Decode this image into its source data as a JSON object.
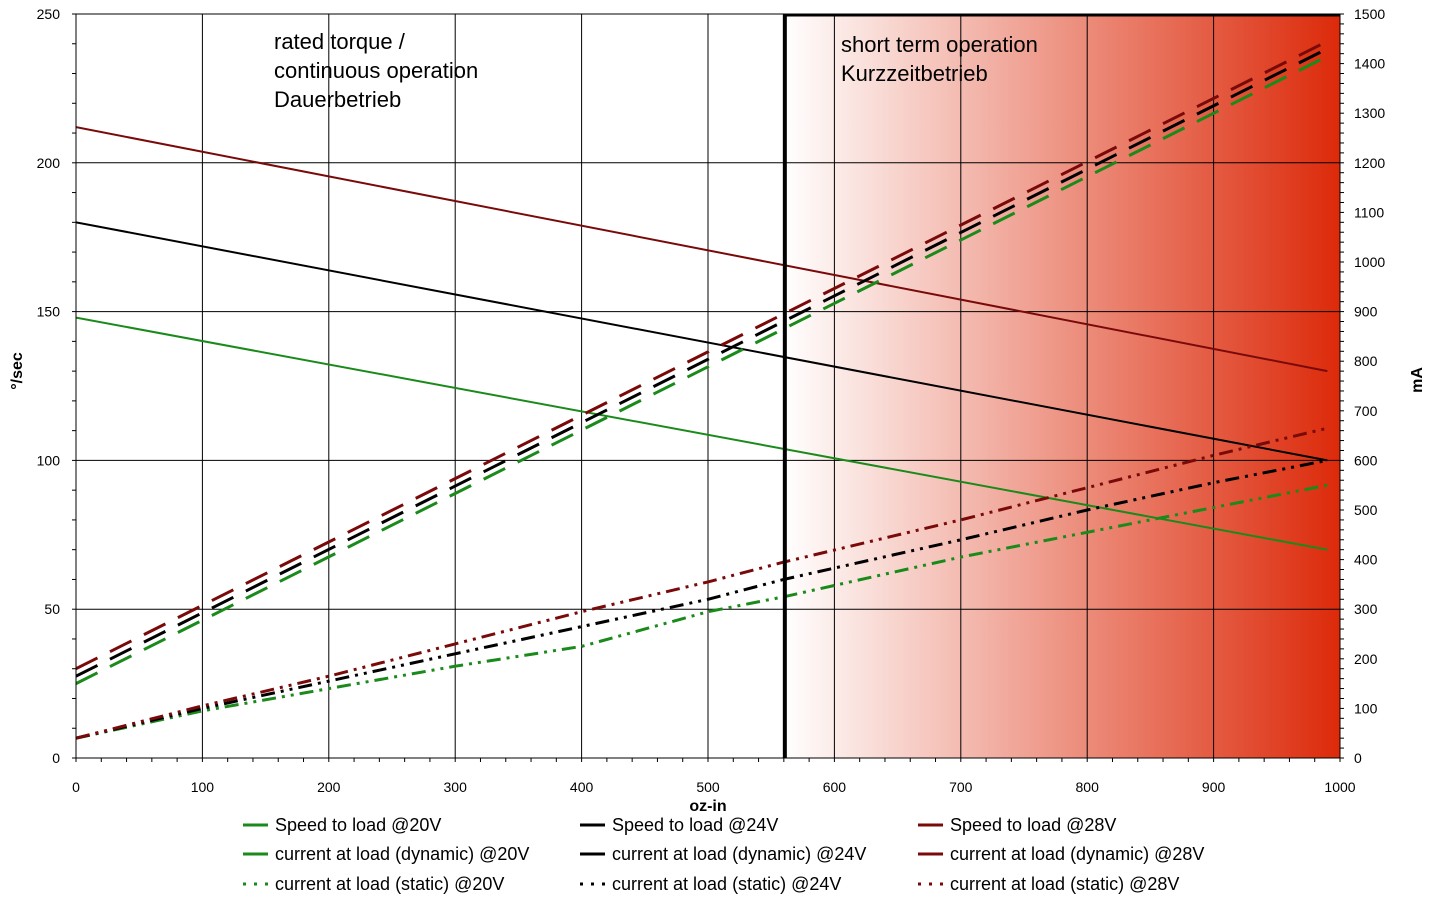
{
  "chart_data": {
    "type": "line",
    "title": "",
    "xlabel": "oz-in",
    "ylabel": "°/sec",
    "y2label": "mA",
    "xlim": [
      0,
      1000
    ],
    "ylim": [
      0,
      250
    ],
    "y2lim": [
      0,
      1500
    ],
    "x_ticks": [
      0,
      100,
      200,
      300,
      400,
      500,
      600,
      700,
      800,
      900,
      1000
    ],
    "y_ticks": [
      0,
      50,
      100,
      150,
      200,
      250
    ],
    "y2_ticks": [
      0,
      100,
      200,
      300,
      400,
      500,
      600,
      700,
      800,
      900,
      1000,
      1100,
      1200,
      1300,
      1400,
      1500
    ],
    "grid": true,
    "legend_position": "bottom",
    "regions": [
      {
        "name": "continuous",
        "x_range": [
          0,
          560
        ],
        "label_lines": [
          "rated torque /",
          "continuous operation",
          "Dauerbetrieb"
        ]
      },
      {
        "name": "short-term",
        "x_range": [
          560,
          1000
        ],
        "label_lines": [
          "short term operation",
          "Kurzzeitbetrieb"
        ],
        "gradient_colors": [
          "#ffffff",
          "#dc2a0a"
        ]
      }
    ],
    "boundary_x": 560,
    "series": [
      {
        "name": "Speed to load @20V",
        "axis": "left",
        "style": "solid",
        "color": "#1a8a1a",
        "x": [
          0,
          990
        ],
        "values": [
          148,
          70
        ]
      },
      {
        "name": "Speed to load @24V",
        "axis": "left",
        "style": "solid",
        "color": "#000000",
        "x": [
          0,
          990
        ],
        "values": [
          180,
          100
        ]
      },
      {
        "name": "Speed to load @28V",
        "axis": "left",
        "style": "solid",
        "color": "#7a0a0a",
        "x": [
          0,
          990
        ],
        "values": [
          212,
          130
        ]
      },
      {
        "name": "current at load (dynamic) @20V",
        "axis": "right",
        "style": "dashed",
        "color": "#1a8a1a",
        "x": [
          0,
          990
        ],
        "values": [
          150,
          1415
        ]
      },
      {
        "name": "current at load (dynamic) @24V",
        "axis": "right",
        "style": "dashed",
        "color": "#000000",
        "x": [
          0,
          990
        ],
        "values": [
          165,
          1430
        ]
      },
      {
        "name": "current at load (dynamic) @28V",
        "axis": "right",
        "style": "dashed",
        "color": "#7a0a0a",
        "x": [
          0,
          990
        ],
        "values": [
          180,
          1445
        ]
      },
      {
        "name": "current at load (static) @20V",
        "axis": "right",
        "style": "dotted",
        "color": "#1a8a1a",
        "x": [
          0,
          100,
          200,
          300,
          400,
          500,
          560,
          700,
          800,
          900,
          990
        ],
        "values": [
          40,
          95,
          140,
          185,
          225,
          295,
          325,
          405,
          455,
          505,
          550
        ]
      },
      {
        "name": "current at load (static) @24V",
        "axis": "right",
        "style": "dotted",
        "color": "#000000",
        "x": [
          0,
          100,
          200,
          300,
          400,
          500,
          560,
          700,
          800,
          900,
          990
        ],
        "values": [
          40,
          100,
          155,
          210,
          265,
          320,
          360,
          440,
          500,
          555,
          600
        ]
      },
      {
        "name": "current at load (static) @28V",
        "axis": "right",
        "style": "dotted",
        "color": "#7a0a0a",
        "x": [
          0,
          100,
          200,
          300,
          400,
          500,
          560,
          700,
          800,
          900,
          990
        ],
        "values": [
          40,
          105,
          165,
          230,
          295,
          355,
          395,
          480,
          545,
          610,
          665
        ]
      }
    ]
  }
}
